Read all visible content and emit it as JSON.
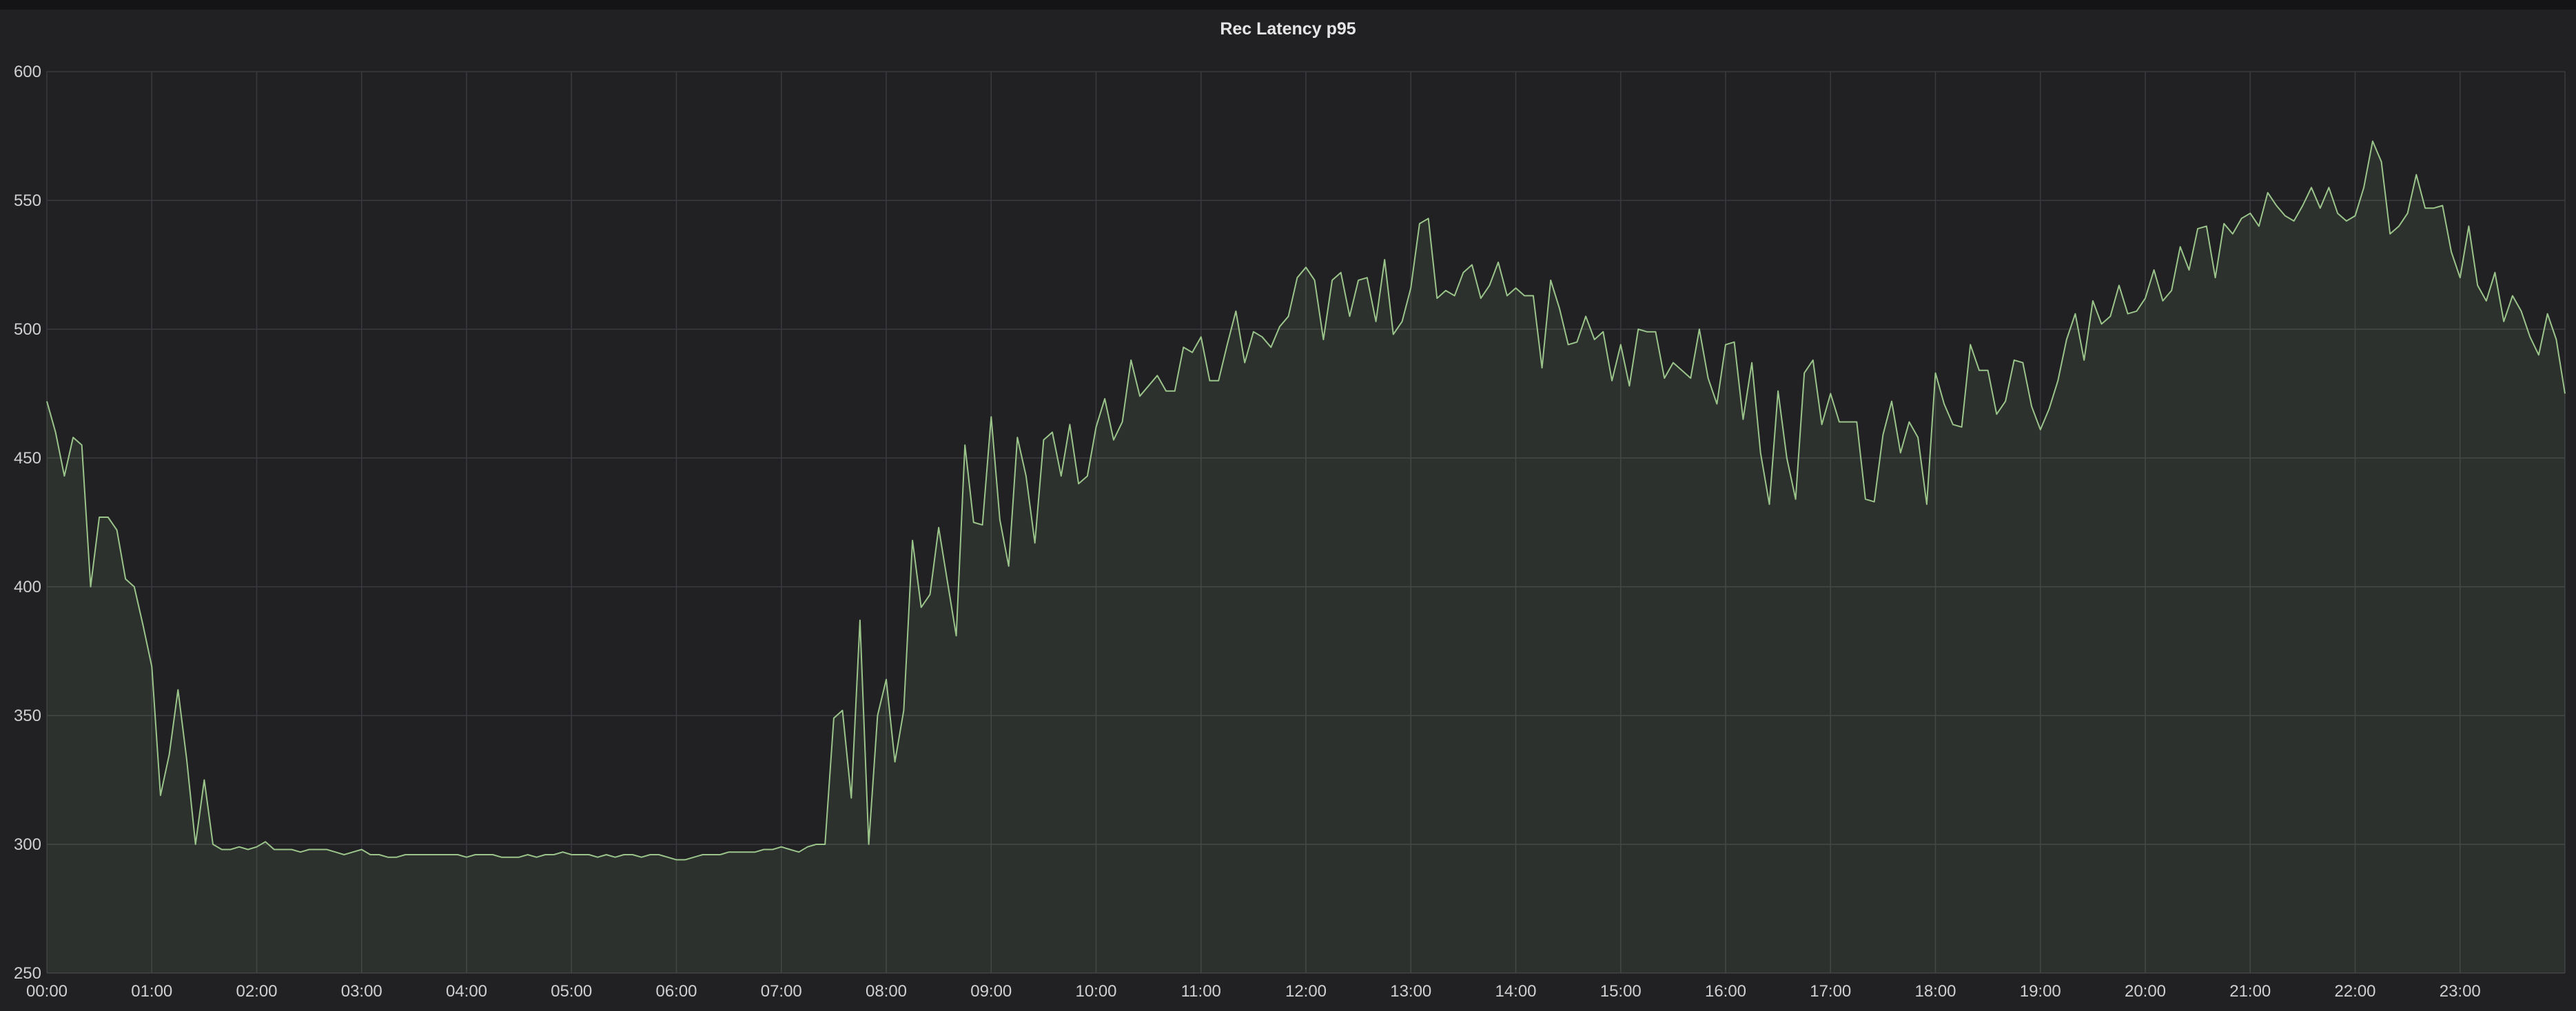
{
  "panel": {
    "title": "Rec Latency p95"
  },
  "colors": {
    "line": "#9ac48a",
    "fill": "#9ac48a",
    "grid": "#3a3a3e",
    "text": "#d0d0d0",
    "background": "#212124"
  },
  "chart_data": {
    "type": "area",
    "title": "Rec Latency p95",
    "xlabel": "",
    "ylabel": "",
    "xlim": [
      0,
      24
    ],
    "ylim": [
      250,
      600
    ],
    "grid": true,
    "legend": "none",
    "x_ticks": [
      "00:00",
      "01:00",
      "02:00",
      "03:00",
      "04:00",
      "05:00",
      "06:00",
      "07:00",
      "08:00",
      "09:00",
      "10:00",
      "11:00",
      "12:00",
      "13:00",
      "14:00",
      "15:00",
      "16:00",
      "17:00",
      "18:00",
      "19:00",
      "20:00",
      "21:00",
      "22:00",
      "23:00"
    ],
    "y_ticks": [
      250,
      300,
      350,
      400,
      450,
      500,
      550,
      600
    ],
    "x": [
      0.0,
      0.083,
      0.167,
      0.25,
      0.333,
      0.417,
      0.5,
      0.583,
      0.667,
      0.75,
      0.833,
      0.917,
      1.0,
      1.083,
      1.167,
      1.25,
      1.333,
      1.417,
      1.5,
      1.583,
      1.667,
      1.75,
      1.833,
      1.917,
      2.0,
      2.083,
      2.167,
      2.25,
      2.333,
      2.417,
      2.5,
      2.583,
      2.667,
      2.75,
      2.833,
      2.917,
      3.0,
      3.083,
      3.167,
      3.25,
      3.333,
      3.417,
      3.5,
      3.583,
      3.667,
      3.75,
      3.833,
      3.917,
      4.0,
      4.083,
      4.167,
      4.25,
      4.333,
      4.417,
      4.5,
      4.583,
      4.667,
      4.75,
      4.833,
      4.917,
      5.0,
      5.083,
      5.167,
      5.25,
      5.333,
      5.417,
      5.5,
      5.583,
      5.667,
      5.75,
      5.833,
      5.917,
      6.0,
      6.083,
      6.167,
      6.25,
      6.333,
      6.417,
      6.5,
      6.583,
      6.667,
      6.75,
      6.833,
      6.917,
      7.0,
      7.083,
      7.167,
      7.25,
      7.333,
      7.417,
      7.5,
      7.583,
      7.667,
      7.75,
      7.833,
      7.917,
      8.0,
      8.083,
      8.167,
      8.25,
      8.333,
      8.417,
      8.5,
      8.583,
      8.667,
      8.75,
      8.833,
      8.917,
      9.0,
      9.083,
      9.167,
      9.25,
      9.333,
      9.417,
      9.5,
      9.583,
      9.667,
      9.75,
      9.833,
      9.917,
      10.0,
      10.083,
      10.167,
      10.25,
      10.333,
      10.417,
      10.5,
      10.583,
      10.667,
      10.75,
      10.833,
      10.917,
      11.0,
      11.083,
      11.167,
      11.25,
      11.333,
      11.417,
      11.5,
      11.583,
      11.667,
      11.75,
      11.833,
      11.917,
      12.0,
      12.083,
      12.167,
      12.25,
      12.333,
      12.417,
      12.5,
      12.583,
      12.667,
      12.75,
      12.833,
      12.917,
      13.0,
      13.083,
      13.167,
      13.25,
      13.333,
      13.417,
      13.5,
      13.583,
      13.667,
      13.75,
      13.833,
      13.917,
      14.0,
      14.083,
      14.167,
      14.25,
      14.333,
      14.417,
      14.5,
      14.583,
      14.667,
      14.75,
      14.833,
      14.917,
      15.0,
      15.083,
      15.167,
      15.25,
      15.333,
      15.417,
      15.5,
      15.583,
      15.667,
      15.75,
      15.833,
      15.917,
      16.0,
      16.083,
      16.167,
      16.25,
      16.333,
      16.417,
      16.5,
      16.583,
      16.667,
      16.75,
      16.833,
      16.917,
      17.0,
      17.083,
      17.167,
      17.25,
      17.333,
      17.417,
      17.5,
      17.583,
      17.667,
      17.75,
      17.833,
      17.917,
      18.0,
      18.083,
      18.167,
      18.25,
      18.333,
      18.417,
      18.5,
      18.583,
      18.667,
      18.75,
      18.833,
      18.917,
      19.0,
      19.083,
      19.167,
      19.25,
      19.333,
      19.417,
      19.5,
      19.583,
      19.667,
      19.75,
      19.833,
      19.917,
      20.0,
      20.083,
      20.167,
      20.25,
      20.333,
      20.417,
      20.5,
      20.583,
      20.667,
      20.75,
      20.833,
      20.917,
      21.0,
      21.083,
      21.167,
      21.25,
      21.333,
      21.417,
      21.5,
      21.583,
      21.667,
      21.75,
      21.833,
      21.917,
      22.0,
      22.083,
      22.167,
      22.25,
      22.333,
      22.417,
      22.5,
      22.583,
      22.667,
      22.75,
      22.833,
      22.917,
      23.0,
      23.083,
      23.167,
      23.25,
      23.333,
      23.417,
      23.5,
      23.583,
      23.667,
      23.75,
      23.833,
      23.917,
      24.0
    ],
    "series": [
      {
        "values": [
          472,
          460,
          443,
          458,
          455,
          400,
          427,
          427,
          422,
          403,
          400,
          385,
          369,
          319,
          335,
          360,
          333,
          300,
          325,
          300,
          298,
          298,
          299,
          298,
          299,
          301,
          298,
          298,
          298,
          297,
          298,
          298,
          298,
          297,
          296,
          297,
          298,
          296,
          296,
          295,
          295,
          296,
          296,
          296,
          296,
          296,
          296,
          296,
          295,
          296,
          296,
          296,
          295,
          295,
          295,
          296,
          295,
          296,
          296,
          297,
          296,
          296,
          296,
          295,
          296,
          295,
          296,
          296,
          295,
          296,
          296,
          295,
          294,
          294,
          295,
          296,
          296,
          296,
          297,
          297,
          297,
          297,
          298,
          298,
          299,
          298,
          297,
          299,
          300,
          300,
          349,
          352,
          318,
          387,
          300,
          350,
          364,
          332,
          352,
          418,
          392,
          397,
          423,
          402,
          381,
          455,
          425,
          424,
          466,
          426,
          408,
          458,
          443,
          417,
          457,
          460,
          443,
          463,
          440,
          443,
          462,
          473,
          457,
          464,
          488,
          474,
          478,
          482,
          476,
          476,
          493,
          491,
          497,
          480,
          480,
          494,
          507,
          487,
          499,
          497,
          493,
          501,
          505,
          520,
          524,
          519,
          496,
          519,
          522,
          505,
          519,
          520,
          503,
          527,
          498,
          503,
          516,
          541,
          543,
          512,
          515,
          513,
          522,
          525,
          512,
          517,
          526,
          513,
          516,
          513,
          513,
          485,
          519,
          508,
          494,
          495,
          505,
          496,
          499,
          480,
          494,
          478,
          500,
          499,
          499,
          481,
          487,
          484,
          481,
          500,
          481,
          471,
          494,
          495,
          465,
          487,
          452,
          432,
          476,
          450,
          434,
          483,
          488,
          463,
          475,
          464,
          464,
          464,
          434,
          433,
          459,
          472,
          452,
          464,
          458,
          432,
          483,
          471,
          463,
          462,
          494,
          484,
          484,
          467,
          472,
          488,
          487,
          470,
          461,
          469,
          480,
          496,
          506,
          488,
          511,
          502,
          505,
          517,
          506,
          507,
          512,
          523,
          511,
          515,
          532,
          523,
          539,
          540,
          520,
          541,
          537,
          543,
          545,
          540,
          553,
          548,
          544,
          542,
          548,
          555,
          547,
          555,
          545,
          542,
          544,
          555,
          573,
          565,
          537,
          540,
          545,
          560,
          547,
          547,
          548,
          530,
          520,
          540,
          517,
          511,
          522,
          503,
          513,
          507,
          497,
          490,
          506,
          496,
          475
        ]
      }
    ]
  }
}
